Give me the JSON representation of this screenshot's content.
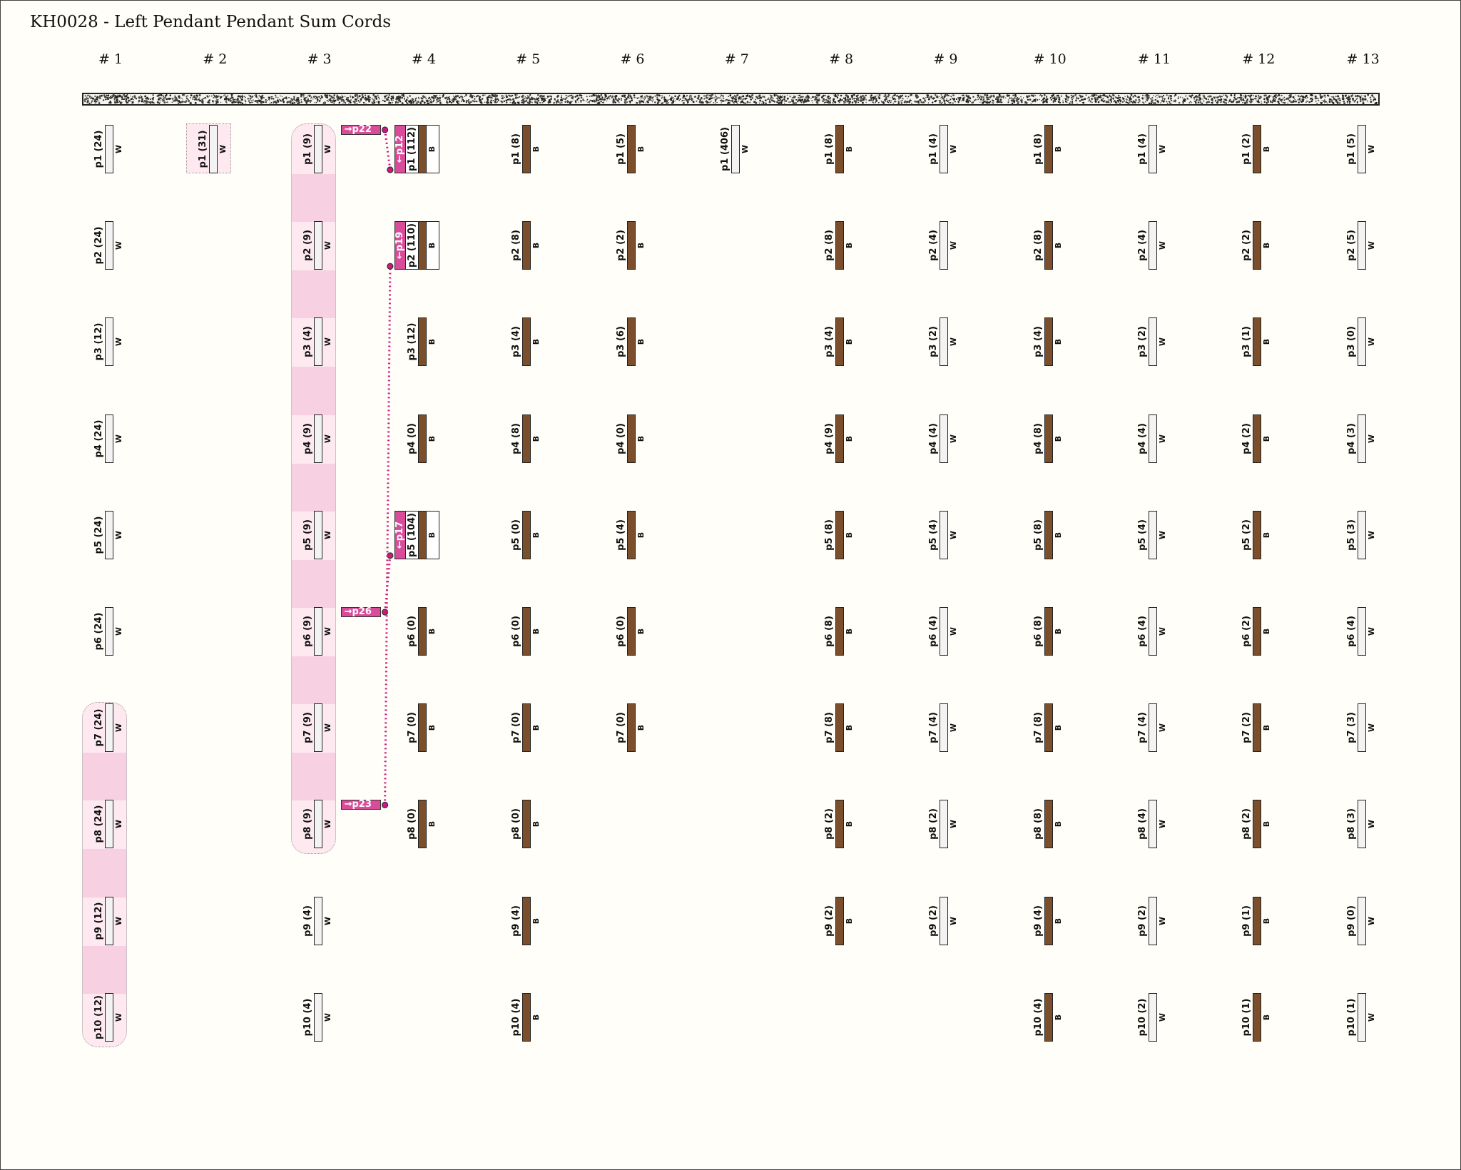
{
  "title": "KH0028 - Left Pendant Pendant Sum Cords",
  "colors": {
    "W": "#f3f3f3",
    "B": "#7b4f2c",
    "sum_tag": "#d94c9a",
    "link": "#d0177f",
    "group_light": "#fde9ef",
    "group_dark": "#f7d0e2"
  },
  "columns": [
    {
      "header": "# 1",
      "pendants": [
        {
          "label": "p1 (24)",
          "color": "W"
        },
        {
          "label": "p2 (24)",
          "color": "W"
        },
        {
          "label": "p3 (12)",
          "color": "W"
        },
        {
          "label": "p4 (24)",
          "color": "W"
        },
        {
          "label": "p5 (24)",
          "color": "W"
        },
        {
          "label": "p6 (24)",
          "color": "W"
        },
        {
          "label": "p7 (24)",
          "color": "W"
        },
        {
          "label": "p8 (24)",
          "color": "W"
        },
        {
          "label": "p9 (12)",
          "color": "W"
        },
        {
          "label": "p10 (12)",
          "color": "W"
        }
      ]
    },
    {
      "header": "# 2",
      "pendants": [
        {
          "label": "p1 (31)",
          "color": "W"
        }
      ]
    },
    {
      "header": "# 3",
      "pendants": [
        {
          "label": "p1 (9)",
          "color": "W"
        },
        {
          "label": "p2 (9)",
          "color": "W"
        },
        {
          "label": "p3 (4)",
          "color": "W"
        },
        {
          "label": "p4 (9)",
          "color": "W"
        },
        {
          "label": "p5 (9)",
          "color": "W"
        },
        {
          "label": "p6 (9)",
          "color": "W"
        },
        {
          "label": "p7 (9)",
          "color": "W"
        },
        {
          "label": "p8 (9)",
          "color": "W"
        },
        {
          "label": "p9 (4)",
          "color": "W"
        },
        {
          "label": "p10 (4)",
          "color": "W"
        }
      ]
    },
    {
      "header": "# 4",
      "pendants": [
        {
          "label": "p1 (112)",
          "color": "B",
          "sum_tag": "←p12"
        },
        {
          "label": "p2 (110)",
          "color": "B",
          "sum_tag": "←p19"
        },
        {
          "label": "p3 (12)",
          "color": "B"
        },
        {
          "label": "p4 (0)",
          "color": "B"
        },
        {
          "label": "p5 (104)",
          "color": "B",
          "sum_tag": "←p17"
        },
        {
          "label": "p6 (0)",
          "color": "B"
        },
        {
          "label": "p7 (0)",
          "color": "B"
        },
        {
          "label": "p8 (0)",
          "color": "B"
        }
      ]
    },
    {
      "header": "# 5",
      "pendants": [
        {
          "label": "p1 (8)",
          "color": "B"
        },
        {
          "label": "p2 (8)",
          "color": "B"
        },
        {
          "label": "p3 (4)",
          "color": "B"
        },
        {
          "label": "p4 (8)",
          "color": "B"
        },
        {
          "label": "p5 (0)",
          "color": "B"
        },
        {
          "label": "p6 (0)",
          "color": "B"
        },
        {
          "label": "p7 (0)",
          "color": "B"
        },
        {
          "label": "p8 (0)",
          "color": "B"
        },
        {
          "label": "p9 (4)",
          "color": "B"
        },
        {
          "label": "p10 (4)",
          "color": "B"
        }
      ]
    },
    {
      "header": "# 6",
      "pendants": [
        {
          "label": "p1 (5)",
          "color": "B"
        },
        {
          "label": "p2 (2)",
          "color": "B"
        },
        {
          "label": "p3 (6)",
          "color": "B"
        },
        {
          "label": "p4 (0)",
          "color": "B"
        },
        {
          "label": "p5 (4)",
          "color": "B"
        },
        {
          "label": "p6 (0)",
          "color": "B"
        },
        {
          "label": "p7 (0)",
          "color": "B"
        }
      ]
    },
    {
      "header": "# 7",
      "pendants": [
        {
          "label": "p1 (406)",
          "color": "W"
        }
      ]
    },
    {
      "header": "# 8",
      "pendants": [
        {
          "label": "p1 (8)",
          "color": "B"
        },
        {
          "label": "p2 (8)",
          "color": "B"
        },
        {
          "label": "p3 (4)",
          "color": "B"
        },
        {
          "label": "p4 (9)",
          "color": "B"
        },
        {
          "label": "p5 (8)",
          "color": "B"
        },
        {
          "label": "p6 (8)",
          "color": "B"
        },
        {
          "label": "p7 (8)",
          "color": "B"
        },
        {
          "label": "p8 (2)",
          "color": "B"
        },
        {
          "label": "p9 (2)",
          "color": "B"
        }
      ]
    },
    {
      "header": "# 9",
      "pendants": [
        {
          "label": "p1 (4)",
          "color": "W"
        },
        {
          "label": "p2 (4)",
          "color": "W"
        },
        {
          "label": "p3 (2)",
          "color": "W"
        },
        {
          "label": "p4 (4)",
          "color": "W"
        },
        {
          "label": "p5 (4)",
          "color": "W"
        },
        {
          "label": "p6 (4)",
          "color": "W"
        },
        {
          "label": "p7 (4)",
          "color": "W"
        },
        {
          "label": "p8 (2)",
          "color": "W"
        },
        {
          "label": "p9 (2)",
          "color": "W"
        }
      ]
    },
    {
      "header": "# 10",
      "pendants": [
        {
          "label": "p1 (8)",
          "color": "B"
        },
        {
          "label": "p2 (8)",
          "color": "B"
        },
        {
          "label": "p3 (4)",
          "color": "B"
        },
        {
          "label": "p4 (8)",
          "color": "B"
        },
        {
          "label": "p5 (8)",
          "color": "B"
        },
        {
          "label": "p6 (8)",
          "color": "B"
        },
        {
          "label": "p7 (8)",
          "color": "B"
        },
        {
          "label": "p8 (8)",
          "color": "B"
        },
        {
          "label": "p9 (4)",
          "color": "B"
        },
        {
          "label": "p10 (4)",
          "color": "B"
        }
      ]
    },
    {
      "header": "# 11",
      "pendants": [
        {
          "label": "p1 (4)",
          "color": "W"
        },
        {
          "label": "p2 (4)",
          "color": "W"
        },
        {
          "label": "p3 (2)",
          "color": "W"
        },
        {
          "label": "p4 (4)",
          "color": "W"
        },
        {
          "label": "p5 (4)",
          "color": "W"
        },
        {
          "label": "p6 (4)",
          "color": "W"
        },
        {
          "label": "p7 (4)",
          "color": "W"
        },
        {
          "label": "p8 (4)",
          "color": "W"
        },
        {
          "label": "p9 (2)",
          "color": "W"
        },
        {
          "label": "p10 (2)",
          "color": "W"
        }
      ]
    },
    {
      "header": "# 12",
      "pendants": [
        {
          "label": "p1 (2)",
          "color": "B"
        },
        {
          "label": "p2 (2)",
          "color": "B"
        },
        {
          "label": "p3 (1)",
          "color": "B"
        },
        {
          "label": "p4 (2)",
          "color": "B"
        },
        {
          "label": "p5 (2)",
          "color": "B"
        },
        {
          "label": "p6 (2)",
          "color": "B"
        },
        {
          "label": "p7 (2)",
          "color": "B"
        },
        {
          "label": "p8 (2)",
          "color": "B"
        },
        {
          "label": "p9 (1)",
          "color": "B"
        },
        {
          "label": "p10 (1)",
          "color": "B"
        }
      ]
    },
    {
      "header": "# 13",
      "pendants": [
        {
          "label": "p1 (5)",
          "color": "W"
        },
        {
          "label": "p2 (5)",
          "color": "W"
        },
        {
          "label": "p3 (0)",
          "color": "W"
        },
        {
          "label": "p4 (3)",
          "color": "W"
        },
        {
          "label": "p5 (3)",
          "color": "W"
        },
        {
          "label": "p6 (4)",
          "color": "W"
        },
        {
          "label": "p7 (3)",
          "color": "W"
        },
        {
          "label": "p8 (3)",
          "color": "W"
        },
        {
          "label": "p9 (0)",
          "color": "W"
        },
        {
          "label": "p10 (1)",
          "color": "W"
        }
      ]
    }
  ],
  "groups": [
    {
      "column": 1,
      "from": 7,
      "to": 10
    },
    {
      "column": 2,
      "from": 1,
      "to": 1
    },
    {
      "column": 3,
      "from": 1,
      "to": 8
    }
  ],
  "out_tags": [
    {
      "column": 3,
      "pendant": 1,
      "label": "→p22",
      "target": {
        "column": 4,
        "pendant": 1
      }
    },
    {
      "column": 3,
      "pendant": 6,
      "label": "→p26",
      "target": {
        "column": 4,
        "pendant": 5
      }
    },
    {
      "column": 3,
      "pendant": 8,
      "label": "→p23",
      "target": {
        "column": 4,
        "pendant": 2
      }
    }
  ]
}
